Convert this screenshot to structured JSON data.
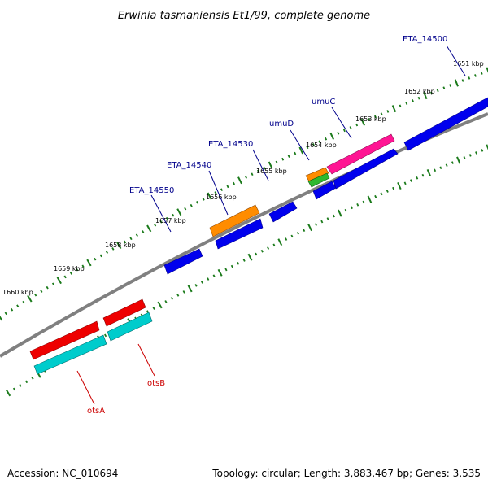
{
  "title": "Erwinia tasmaniensis Et1/99, complete genome",
  "footer": {
    "accession": "Accession: NC_010694",
    "summary": "Topology: circular; Length: 3,883,467 bp; Genes: 3,535"
  },
  "scale_labels": [
    "1651 kbp",
    "1652 kbp",
    "1653 kbp",
    "1654 kbp",
    "1655 kbp",
    "1656 kbp",
    "1657 kbp",
    "1658 kbp",
    "1659 kbp",
    "1660 kbp"
  ],
  "gene_labels": [
    {
      "text": "ETA_14500",
      "color": "#00008b"
    },
    {
      "text": "umuC",
      "color": "#00008b"
    },
    {
      "text": "umuD",
      "color": "#00008b"
    },
    {
      "text": "ETA_14530",
      "color": "#00008b"
    },
    {
      "text": "ETA_14540",
      "color": "#00008b"
    },
    {
      "text": "ETA_14550",
      "color": "#00008b"
    },
    {
      "text": "otsB",
      "color": "#cc0000"
    },
    {
      "text": "otsA",
      "color": "#cc0000"
    }
  ],
  "colors": {
    "backbone": "#808080",
    "ticks": "#1a7a1a",
    "cds_blue": "#0000ee",
    "cds_red": "#ee0000",
    "cds_cyan": "#00cccc",
    "cds_orange": "#ff8c00",
    "cds_pink": "#ff1493",
    "cds_green": "#2eb82e"
  }
}
